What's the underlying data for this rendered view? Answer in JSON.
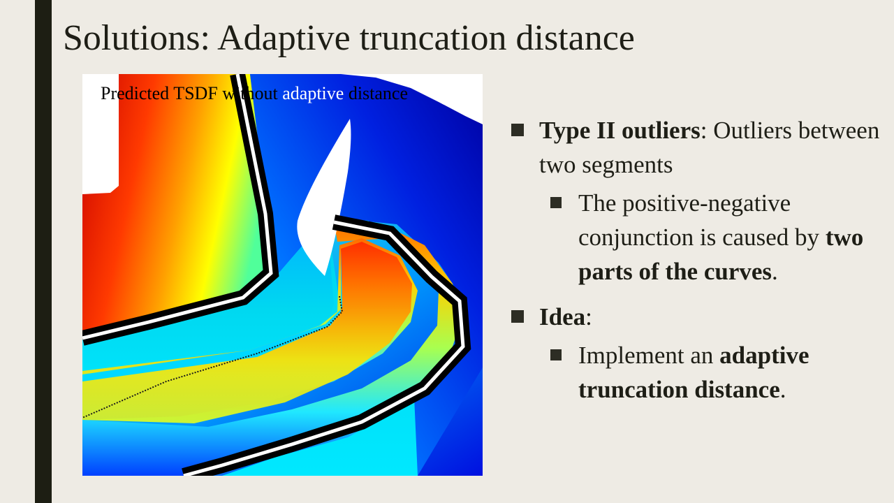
{
  "slide": {
    "title": "Solutions:  Adaptive truncation distance",
    "figure": {
      "caption_part1": "Predicted TSDF without ",
      "caption_part2": "adaptive",
      "caption_part3": " distance"
    },
    "bullets": [
      {
        "level": 1,
        "bold": "Type II outliers",
        "text": ": Outliers between two segments"
      },
      {
        "level": 2,
        "text_before": "The positive-negative conjunction is caused by ",
        "bold": "two parts of  the curves",
        "text_after": "."
      },
      {
        "level": 1,
        "bold": "Idea",
        "text": ":"
      },
      {
        "level": 2,
        "text_before": "Implement an ",
        "bold": "adaptive truncation distance",
        "text_after": "."
      }
    ]
  }
}
